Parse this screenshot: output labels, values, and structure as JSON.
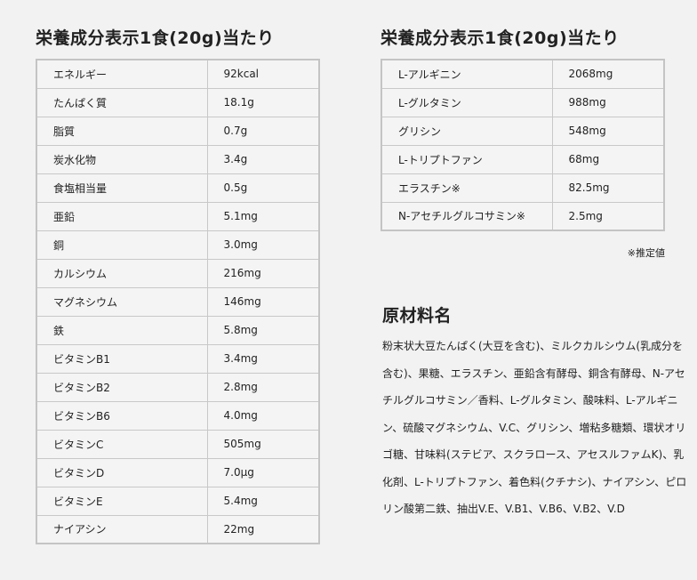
{
  "left": {
    "title": "栄養成分表示1食(20g)当たり",
    "rows": [
      {
        "name": "エネルギー",
        "value": "92kcal"
      },
      {
        "name": "たんぱく質",
        "value": "18.1g"
      },
      {
        "name": "脂質",
        "value": "0.7g"
      },
      {
        "name": "炭水化物",
        "value": "3.4g"
      },
      {
        "name": "食塩相当量",
        "value": "0.5g"
      },
      {
        "name": "亜鉛",
        "value": "5.1mg"
      },
      {
        "name": "銅",
        "value": "3.0mg"
      },
      {
        "name": "カルシウム",
        "value": "216mg"
      },
      {
        "name": "マグネシウム",
        "value": "146mg"
      },
      {
        "name": "鉄",
        "value": "5.8mg"
      },
      {
        "name": "ビタミンB1",
        "value": "3.4mg"
      },
      {
        "name": "ビタミンB2",
        "value": "2.8mg"
      },
      {
        "name": "ビタミンB6",
        "value": "4.0mg"
      },
      {
        "name": "ビタミンC",
        "value": "505mg"
      },
      {
        "name": "ビタミンD",
        "value": "7.0μg"
      },
      {
        "name": "ビタミンE",
        "value": "5.4mg"
      },
      {
        "name": "ナイアシン",
        "value": "22mg"
      }
    ]
  },
  "right": {
    "title": "栄養成分表示1食(20g)当たり",
    "rows": [
      {
        "name": "L-アルギニン",
        "value": "2068mg"
      },
      {
        "name": "L-グルタミン",
        "value": "988mg"
      },
      {
        "name": "グリシン",
        "value": "548mg"
      },
      {
        "name": "L-トリプトファン",
        "value": "68mg"
      },
      {
        "name": "エラスチン※",
        "value": "82.5mg"
      },
      {
        "name": "N-アセチルグルコサミン※",
        "value": "2.5mg"
      }
    ],
    "note": "※推定値"
  },
  "ingredients": {
    "title": "原材料名",
    "text": "粉末状大豆たんぱく(大豆を含む)、ミルクカルシウム(乳成分を含む)、果糖、エラスチン、亜鉛含有酵母、銅含有酵母、N-アセチルグルコサミン／香料、L-グルタミン、酸味料、L-アルギニン、硫酸マグネシウム、V.C、グリシン、増粘多糖類、環状オリゴ糖、甘味料(ステビア、スクラロース、アセスルファムK)、乳化剤、L-トリプトファン、着色料(クチナシ)、ナイアシン、ピロリン酸第二鉄、抽出V.E、V.B1、V.B6、V.B2、V.D"
  }
}
